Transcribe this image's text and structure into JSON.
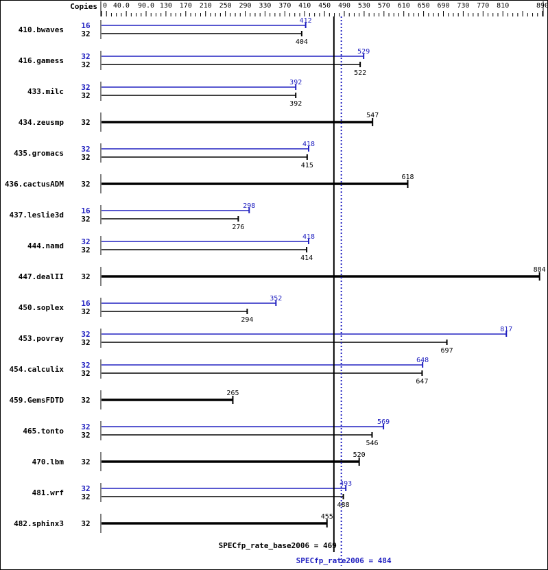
{
  "chart_data": {
    "type": "bar",
    "orientation": "horizontal",
    "copies_header": "Copies",
    "xlim": [
      0,
      890
    ],
    "ticks": [
      "0",
      "40.0",
      "90.0",
      "130",
      "170",
      "210",
      "250",
      "290",
      "330",
      "370",
      "410",
      "450",
      "490",
      "530",
      "570",
      "610",
      "650",
      "690",
      "730",
      "770",
      "810",
      "890"
    ],
    "tick_values": [
      0,
      40,
      90,
      130,
      170,
      210,
      250,
      290,
      330,
      370,
      410,
      450,
      490,
      530,
      570,
      610,
      650,
      690,
      730,
      770,
      810,
      890
    ],
    "colors": {
      "peak": "#2020c0",
      "base": "#000000"
    },
    "benchmarks": [
      {
        "name": "410.bwaves",
        "peak_copies": "16",
        "peak": 412,
        "base_copies": "32",
        "base": 404
      },
      {
        "name": "416.gamess",
        "peak_copies": "32",
        "peak": 529,
        "base_copies": "32",
        "base": 522
      },
      {
        "name": "433.milc",
        "peak_copies": "32",
        "peak": 392,
        "base_copies": "32",
        "base": 392
      },
      {
        "name": "434.zeusmp",
        "base_copies": "32",
        "base": 547
      },
      {
        "name": "435.gromacs",
        "peak_copies": "32",
        "peak": 418,
        "base_copies": "32",
        "base": 415
      },
      {
        "name": "436.cactusADM",
        "base_copies": "32",
        "base": 618
      },
      {
        "name": "437.leslie3d",
        "peak_copies": "16",
        "peak": 298,
        "base_copies": "32",
        "base": 276
      },
      {
        "name": "444.namd",
        "peak_copies": "32",
        "peak": 418,
        "base_copies": "32",
        "base": 414
      },
      {
        "name": "447.dealII",
        "base_copies": "32",
        "base": 884
      },
      {
        "name": "450.soplex",
        "peak_copies": "16",
        "peak": 352,
        "base_copies": "32",
        "base": 294
      },
      {
        "name": "453.povray",
        "peak_copies": "32",
        "peak": 817,
        "base_copies": "32",
        "base": 697
      },
      {
        "name": "454.calculix",
        "peak_copies": "32",
        "peak": 648,
        "base_copies": "32",
        "base": 647
      },
      {
        "name": "459.GemsFDTD",
        "base_copies": "32",
        "base": 265
      },
      {
        "name": "465.tonto",
        "peak_copies": "32",
        "peak": 569,
        "base_copies": "32",
        "base": 546
      },
      {
        "name": "470.lbm",
        "base_copies": "32",
        "base": 520
      },
      {
        "name": "481.wrf",
        "peak_copies": "32",
        "peak": 493,
        "base_copies": "32",
        "base": 488
      },
      {
        "name": "482.sphinx3",
        "base_copies": "32",
        "base": 455
      }
    ],
    "base_summary": {
      "label": "SPECfp_rate_base2006 = 469",
      "value": 469
    },
    "peak_summary": {
      "label": "SPECfp_rate2006 = 484",
      "value": 484
    }
  }
}
